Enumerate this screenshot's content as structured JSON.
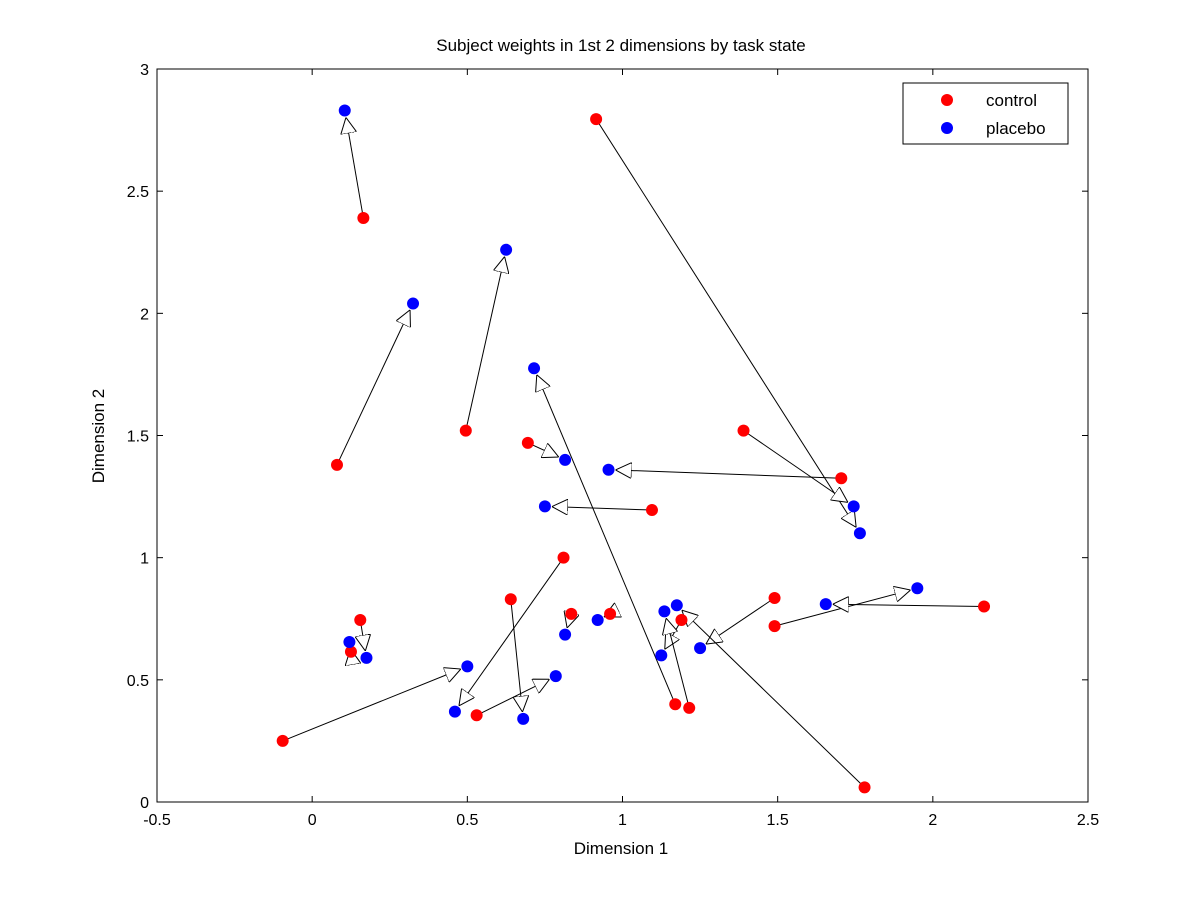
{
  "chart_data": {
    "type": "scatter",
    "title": "Subject weights in 1st 2 dimensions by task state",
    "xlabel": "Dimension 1",
    "ylabel": "Dimension 2",
    "xlim": [
      -0.5,
      2.5
    ],
    "ylim": [
      0,
      3
    ],
    "xticks": [
      -0.5,
      0,
      0.5,
      1,
      1.5,
      2,
      2.5
    ],
    "xtick_labels": [
      "-0.5",
      "0",
      "0.5",
      "1",
      "1.5",
      "2",
      "2.5"
    ],
    "yticks": [
      0,
      0.5,
      1,
      1.5,
      2,
      2.5,
      3
    ],
    "ytick_labels": [
      "0",
      "0.5",
      "1",
      "1.5",
      "2",
      "2.5",
      "3"
    ],
    "grid": false,
    "legend_position": "top-right",
    "series": [
      {
        "name": "control",
        "color": "#ff0000",
        "points": [
          [
            0.165,
            2.39
          ],
          [
            0.08,
            1.38
          ],
          [
            0.495,
            1.52
          ],
          [
            0.915,
            2.795
          ],
          [
            0.695,
            1.47
          ],
          [
            1.39,
            1.52
          ],
          [
            1.705,
            1.325
          ],
          [
            1.095,
            1.195
          ],
          [
            0.81,
            1.0
          ],
          [
            0.155,
            0.745
          ],
          [
            0.125,
            0.615
          ],
          [
            -0.095,
            0.25
          ],
          [
            0.64,
            0.83
          ],
          [
            0.53,
            0.355
          ],
          [
            0.835,
            0.77
          ],
          [
            0.96,
            0.77
          ],
          [
            1.19,
            0.745
          ],
          [
            1.17,
            0.4
          ],
          [
            1.215,
            0.385
          ],
          [
            1.49,
            0.835
          ],
          [
            1.49,
            0.72
          ],
          [
            2.165,
            0.8
          ],
          [
            1.78,
            0.06
          ]
        ]
      },
      {
        "name": "placebo",
        "color": "#0000ff",
        "points": [
          [
            0.105,
            2.83
          ],
          [
            0.325,
            2.04
          ],
          [
            0.625,
            2.26
          ],
          [
            1.765,
            1.1
          ],
          [
            0.815,
            1.4
          ],
          [
            1.745,
            1.21
          ],
          [
            0.955,
            1.36
          ],
          [
            0.75,
            1.21
          ],
          [
            0.46,
            0.37
          ],
          [
            0.175,
            0.59
          ],
          [
            0.12,
            0.655
          ],
          [
            0.5,
            0.555
          ],
          [
            0.68,
            0.34
          ],
          [
            0.785,
            0.515
          ],
          [
            0.815,
            0.685
          ],
          [
            0.92,
            0.745
          ],
          [
            1.125,
            0.6
          ],
          [
            0.715,
            1.775
          ],
          [
            1.135,
            0.78
          ],
          [
            1.25,
            0.63
          ],
          [
            1.95,
            0.875
          ],
          [
            1.655,
            0.81
          ],
          [
            1.175,
            0.805
          ]
        ]
      }
    ],
    "arrows": "each control point links to the placebo point at the same position in the list"
  }
}
